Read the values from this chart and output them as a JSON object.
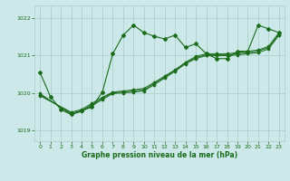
{
  "xlabel": "Graphe pression niveau de la mer (hPa)",
  "background_color": "#cce8e8",
  "grid_color": "#aacccc",
  "line_color": "#1a6b1a",
  "xlim": [
    -0.5,
    23.5
  ],
  "ylim": [
    1018.7,
    1022.35
  ],
  "yticks": [
    1019,
    1020,
    1021,
    1022
  ],
  "xticks": [
    0,
    1,
    2,
    3,
    4,
    5,
    6,
    7,
    8,
    9,
    10,
    11,
    12,
    13,
    14,
    15,
    16,
    17,
    18,
    19,
    20,
    21,
    22,
    23
  ],
  "main_series_x": [
    0,
    1,
    2,
    3,
    4,
    5,
    6,
    7,
    8,
    9,
    10,
    11,
    12,
    13,
    14,
    15,
    16,
    17,
    18,
    19,
    20,
    21,
    22,
    23
  ],
  "main_series_y": [
    1020.55,
    1019.9,
    1019.55,
    1019.42,
    1019.52,
    1019.62,
    1020.02,
    1021.05,
    1021.55,
    1021.82,
    1021.62,
    1021.52,
    1021.45,
    1021.55,
    1021.22,
    1021.32,
    1021.05,
    1020.92,
    1020.92,
    1021.12,
    1021.12,
    1021.82,
    1021.72,
    1021.62
  ],
  "linear1_x": [
    0,
    3,
    4,
    5,
    6,
    7,
    8,
    9,
    10,
    11,
    12,
    13,
    14,
    15,
    16,
    17,
    18,
    19,
    20,
    21,
    22,
    23
  ],
  "linear1_y": [
    1019.92,
    1019.48,
    1019.55,
    1019.72,
    1019.88,
    1020.02,
    1020.05,
    1020.08,
    1020.12,
    1020.28,
    1020.45,
    1020.62,
    1020.82,
    1020.98,
    1021.05,
    1021.05,
    1021.05,
    1021.08,
    1021.12,
    1021.15,
    1021.25,
    1021.62
  ],
  "linear2_x": [
    0,
    3,
    4,
    5,
    6,
    7,
    8,
    9,
    10,
    11,
    12,
    13,
    14,
    15,
    16,
    17,
    18,
    19,
    20,
    21,
    22,
    23
  ],
  "linear2_y": [
    1019.95,
    1019.45,
    1019.52,
    1019.68,
    1019.85,
    1020.0,
    1020.02,
    1020.05,
    1020.08,
    1020.25,
    1020.42,
    1020.6,
    1020.8,
    1020.95,
    1021.02,
    1021.02,
    1021.02,
    1021.05,
    1021.08,
    1021.12,
    1021.22,
    1021.58
  ],
  "linear3_x": [
    0,
    3,
    4,
    5,
    6,
    7,
    8,
    9,
    10,
    11,
    12,
    13,
    14,
    15,
    16,
    17,
    18,
    19,
    20,
    21,
    22,
    23
  ],
  "linear3_y": [
    1019.98,
    1019.42,
    1019.5,
    1019.65,
    1019.82,
    1019.98,
    1020.0,
    1020.02,
    1020.05,
    1020.22,
    1020.4,
    1020.58,
    1020.78,
    1020.92,
    1021.0,
    1021.0,
    1021.0,
    1021.02,
    1021.05,
    1021.08,
    1021.18,
    1021.55
  ]
}
